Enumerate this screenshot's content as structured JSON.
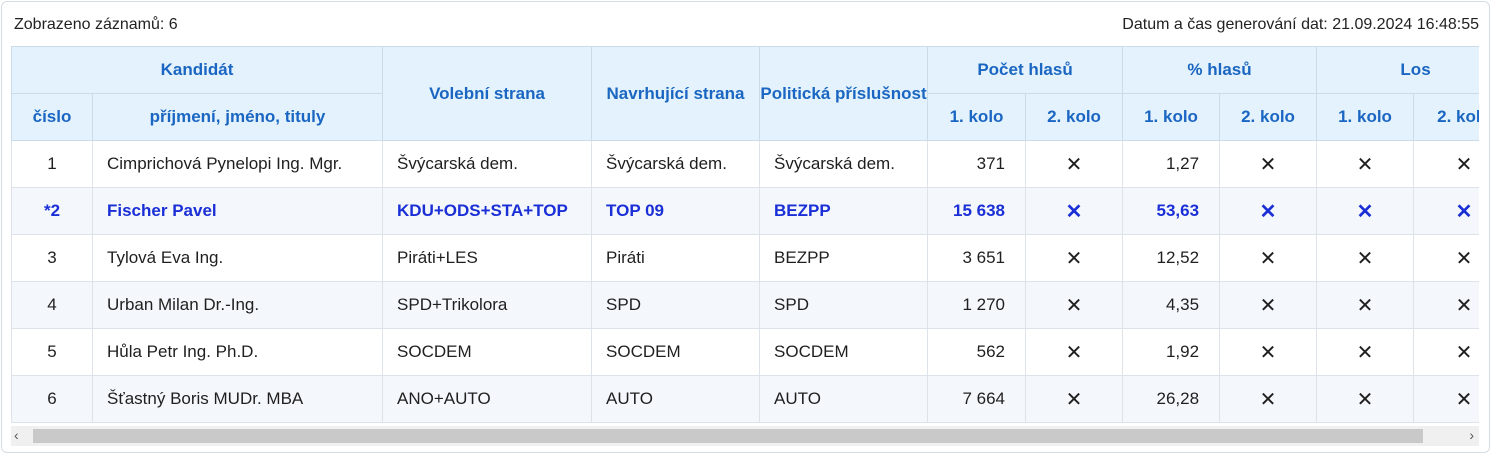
{
  "summary": {
    "records_label": "Zobrazeno záznamů: 6",
    "generated_label": "Datum a čas generování dat: 21.09.2024 16:48:55"
  },
  "headers": {
    "kandidat": "Kandidát",
    "volebni_strana": "Volební strana",
    "navrhujici_strana": "Navrhující strana",
    "politicka": "Politická příslušnost",
    "pocet_hlasu": "Počet hlasů",
    "pct_hlasu": "% hlasů",
    "los": "Los",
    "cislo": "číslo",
    "jmeno": "příjmení, jméno, tituly",
    "kolo1": "1. kolo",
    "kolo2": "2. kolo"
  },
  "rows": [
    {
      "cislo": "1",
      "jmeno": "Cimprichová Pynelopi Ing. Mgr.",
      "volebni": "Švýcarská dem.",
      "navrh": "Švýcarská dem.",
      "polit": "Švýcarská dem.",
      "hlasy1": "371",
      "hlasy2": "✕",
      "pct1": "1,27",
      "pct2": "✕",
      "los1": "✕",
      "los2": "✕"
    },
    {
      "cislo": "*2",
      "jmeno": "Fischer Pavel",
      "volebni": "KDU+ODS+STA+TOP",
      "navrh": "TOP 09",
      "polit": "BEZPP",
      "hlasy1": "15 638",
      "hlasy2": "✕",
      "pct1": "53,63",
      "pct2": "✕",
      "los1": "✕",
      "los2": "✕"
    },
    {
      "cislo": "3",
      "jmeno": "Tylová Eva Ing.",
      "volebni": "Piráti+LES",
      "navrh": "Piráti",
      "polit": "BEZPP",
      "hlasy1": "3 651",
      "hlasy2": "✕",
      "pct1": "12,52",
      "pct2": "✕",
      "los1": "✕",
      "los2": "✕"
    },
    {
      "cislo": "4",
      "jmeno": "Urban Milan Dr.-Ing.",
      "volebni": "SPD+Trikolora",
      "navrh": "SPD",
      "polit": "SPD",
      "hlasy1": "1 270",
      "hlasy2": "✕",
      "pct1": "4,35",
      "pct2": "✕",
      "los1": "✕",
      "los2": "✕"
    },
    {
      "cislo": "5",
      "jmeno": "Hůla Petr Ing. Ph.D.",
      "volebni": "SOCDEM",
      "navrh": "SOCDEM",
      "polit": "SOCDEM",
      "hlasy1": "562",
      "hlasy2": "✕",
      "pct1": "1,92",
      "pct2": "✕",
      "los1": "✕",
      "los2": "✕"
    },
    {
      "cislo": "6",
      "jmeno": "Šťastný Boris MUDr. MBA",
      "volebni": "ANO+AUTO",
      "navrh": "AUTO",
      "polit": "AUTO",
      "hlasy1": "7 664",
      "hlasy2": "✕",
      "pct1": "26,28",
      "pct2": "✕",
      "los1": "✕",
      "los2": "✕"
    }
  ],
  "scrollbar": {
    "left_arrow": "‹",
    "right_arrow": "›"
  },
  "colors": {
    "header_bg": "#e3f2fc",
    "header_text": "#1a66c2",
    "highlight_text": "#1a2fd6"
  }
}
